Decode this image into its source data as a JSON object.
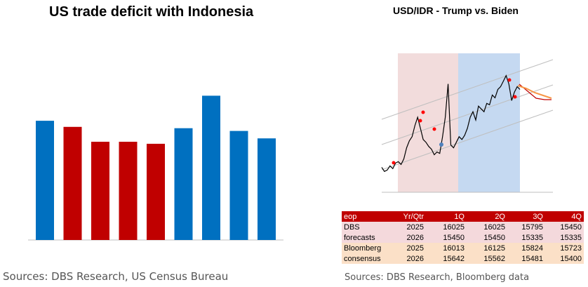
{
  "left": {
    "title": "US trade deficit with Indonesia",
    "source": "Sources: DBS Research, US Census Bureau"
  },
  "right": {
    "title": "USD/IDR - Trump vs. Biden",
    "source": "Sources: DBS Research, Bloomberg data"
  },
  "colors": {
    "blue": "#0070c0",
    "red": "#c00000",
    "trump_shade": "#f2dcdc",
    "biden_shade": "#c5d9f1"
  },
  "chart_data": [
    {
      "type": "bar",
      "title": "US trade deficit with Indonesia",
      "categories": [
        "",
        "",
        "",
        "",
        "",
        "",
        "",
        "",
        ""
      ],
      "values": [
        176,
        167,
        145,
        145,
        142,
        165,
        213,
        161,
        150
      ],
      "bar_colors": [
        "blue",
        "red",
        "red",
        "red",
        "red",
        "blue",
        "blue",
        "blue",
        "blue"
      ],
      "ylim": [
        0,
        230
      ]
    },
    {
      "type": "line",
      "title": "USD/IDR - Trump vs. Biden",
      "x": [
        0,
        4,
        8,
        12,
        16,
        20,
        24,
        28,
        32,
        36,
        40,
        44,
        48,
        52,
        56,
        60,
        64,
        68,
        72,
        76,
        80,
        84,
        88,
        92,
        96,
        100,
        104,
        108,
        112,
        116,
        120,
        124,
        128,
        132,
        136,
        140,
        144,
        148,
        152,
        156,
        160,
        164,
        168,
        172,
        176,
        180,
        184,
        188,
        192,
        196,
        200
      ],
      "series": [
        {
          "values": [
            13400,
            13250,
            13300,
            13450,
            13350,
            13550,
            13600,
            13500,
            13700,
            14100,
            14350,
            14500,
            14900,
            15200,
            14800,
            14400,
            14300,
            14150,
            14050,
            13850,
            13950,
            13900,
            14500,
            15200,
            16400,
            14200,
            14100,
            14300,
            14500,
            14400,
            14550,
            14800,
            15200,
            15400,
            15100,
            15600,
            15500,
            15400,
            15700,
            15650,
            16000,
            15900,
            16200,
            16300,
            16500,
            16700,
            16400,
            15800,
            16100,
            16300,
            16200
          ]
        }
      ],
      "ylim": [
        12500,
        17500
      ]
    },
    {
      "type": "table",
      "headers": [
        "eop",
        "Yr/Qtr",
        "1Q",
        "2Q",
        "3Q",
        "4Q"
      ],
      "rows": [
        [
          "DBS",
          "2025",
          "16025",
          "16025",
          "15795",
          "15450"
        ],
        [
          "forecasts",
          "2026",
          "15450",
          "15450",
          "15335",
          "15335"
        ],
        [
          "Bloomberg",
          "2025",
          "16013",
          "16125",
          "15824",
          "15723"
        ],
        [
          "consensus",
          "2026",
          "15642",
          "15562",
          "15481",
          "15400"
        ]
      ]
    }
  ]
}
